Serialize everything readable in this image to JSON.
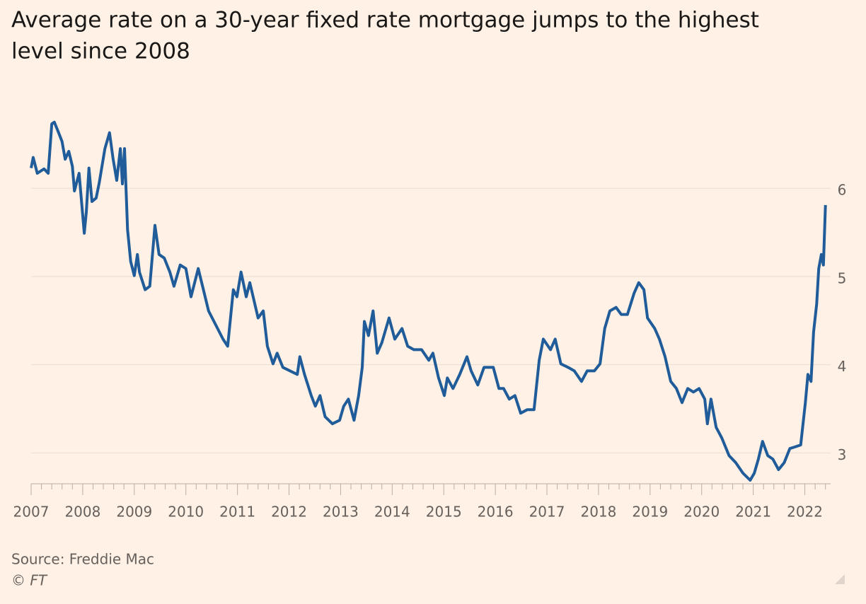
{
  "chart_data": {
    "type": "line",
    "title_lines": [
      "Average rate on a 30-year fixed rate mortgage jumps to the highest",
      "level since 2008"
    ],
    "source": "Source: Freddie Mac",
    "credit": "© FT",
    "xlim": [
      2007,
      2022.5
    ],
    "xticks": [
      2007,
      2008,
      2009,
      2010,
      2011,
      2012,
      2013,
      2014,
      2015,
      2016,
      2017,
      2018,
      2019,
      2020,
      2021,
      2022
    ],
    "ylim": [
      2.65,
      6.9
    ],
    "yticks": [
      3,
      4,
      5,
      6
    ],
    "grid": true,
    "series": [
      {
        "color": "#1f5c99",
        "x": [
          2007.0,
          2007.04,
          2007.12,
          2007.25,
          2007.33,
          2007.4,
          2007.45,
          2007.52,
          2007.6,
          2007.66,
          2007.73,
          2007.8,
          2007.84,
          2007.93,
          2008.03,
          2008.07,
          2008.12,
          2008.18,
          2008.26,
          2008.32,
          2008.43,
          2008.52,
          2008.59,
          2008.66,
          2008.73,
          2008.77,
          2008.81,
          2008.87,
          2008.93,
          2009.0,
          2009.06,
          2009.1,
          2009.21,
          2009.3,
          2009.4,
          2009.48,
          2009.58,
          2009.69,
          2009.77,
          2009.89,
          2010.0,
          2010.1,
          2010.24,
          2010.34,
          2010.44,
          2010.58,
          2010.72,
          2010.81,
          2010.92,
          2010.99,
          2011.07,
          2011.17,
          2011.24,
          2011.4,
          2011.5,
          2011.58,
          2011.69,
          2011.77,
          2011.88,
          2012.02,
          2012.16,
          2012.21,
          2012.3,
          2012.43,
          2012.51,
          2012.6,
          2012.7,
          2012.84,
          2012.98,
          2013.06,
          2013.15,
          2013.26,
          2013.35,
          2013.42,
          2013.46,
          2013.54,
          2013.63,
          2013.71,
          2013.8,
          2013.94,
          2014.05,
          2014.19,
          2014.3,
          2014.42,
          2014.57,
          2014.71,
          2014.79,
          2014.9,
          2015.01,
          2015.07,
          2015.18,
          2015.31,
          2015.45,
          2015.53,
          2015.66,
          2015.78,
          2015.96,
          2016.07,
          2016.16,
          2016.27,
          2016.38,
          2016.49,
          2016.62,
          2016.75,
          2016.85,
          2016.93,
          2017.07,
          2017.16,
          2017.27,
          2017.41,
          2017.53,
          2017.67,
          2017.78,
          2017.92,
          2018.03,
          2018.12,
          2018.22,
          2018.34,
          2018.44,
          2018.56,
          2018.69,
          2018.78,
          2018.88,
          2018.95,
          2019.09,
          2019.18,
          2019.29,
          2019.4,
          2019.51,
          2019.62,
          2019.73,
          2019.84,
          2019.95,
          2020.06,
          2020.11,
          2020.18,
          2020.28,
          2020.39,
          2020.53,
          2020.66,
          2020.8,
          2020.94,
          2021.02,
          2021.1,
          2021.18,
          2021.28,
          2021.38,
          2021.49,
          2021.6,
          2021.71,
          2021.82,
          2021.92,
          2022.01,
          2022.06,
          2022.12,
          2022.17,
          2022.23,
          2022.27,
          2022.32,
          2022.36,
          2022.4
        ],
        "values": [
          6.23,
          6.35,
          6.17,
          6.22,
          6.17,
          6.73,
          6.75,
          6.65,
          6.53,
          6.33,
          6.42,
          6.25,
          5.97,
          6.17,
          5.49,
          5.73,
          6.23,
          5.85,
          5.89,
          6.06,
          6.45,
          6.63,
          6.33,
          6.09,
          6.45,
          6.05,
          6.45,
          5.53,
          5.17,
          5.01,
          5.25,
          5.05,
          4.85,
          4.89,
          5.58,
          5.25,
          5.21,
          5.05,
          4.89,
          5.13,
          5.09,
          4.77,
          5.09,
          4.85,
          4.61,
          4.45,
          4.29,
          4.21,
          4.85,
          4.77,
          5.05,
          4.77,
          4.93,
          4.53,
          4.61,
          4.21,
          4.01,
          4.13,
          3.97,
          3.93,
          3.89,
          4.09,
          3.89,
          3.65,
          3.53,
          3.65,
          3.41,
          3.33,
          3.37,
          3.53,
          3.61,
          3.37,
          3.65,
          3.97,
          4.49,
          4.33,
          4.61,
          4.13,
          4.25,
          4.53,
          4.29,
          4.41,
          4.21,
          4.17,
          4.17,
          4.05,
          4.13,
          3.85,
          3.65,
          3.85,
          3.73,
          3.89,
          4.09,
          3.93,
          3.77,
          3.97,
          3.97,
          3.73,
          3.73,
          3.61,
          3.65,
          3.45,
          3.49,
          3.49,
          4.05,
          4.29,
          4.17,
          4.29,
          4.01,
          3.97,
          3.93,
          3.81,
          3.93,
          3.93,
          4.01,
          4.41,
          4.61,
          4.65,
          4.57,
          4.57,
          4.81,
          4.93,
          4.85,
          4.53,
          4.41,
          4.29,
          4.09,
          3.81,
          3.73,
          3.57,
          3.73,
          3.69,
          3.73,
          3.61,
          3.33,
          3.61,
          3.29,
          3.17,
          2.97,
          2.89,
          2.77,
          2.69,
          2.77,
          2.93,
          3.13,
          2.97,
          2.93,
          2.81,
          2.89,
          3.05,
          3.07,
          3.09,
          3.57,
          3.89,
          3.81,
          4.37,
          4.69,
          5.09,
          5.25,
          5.13,
          5.81
        ]
      }
    ]
  }
}
